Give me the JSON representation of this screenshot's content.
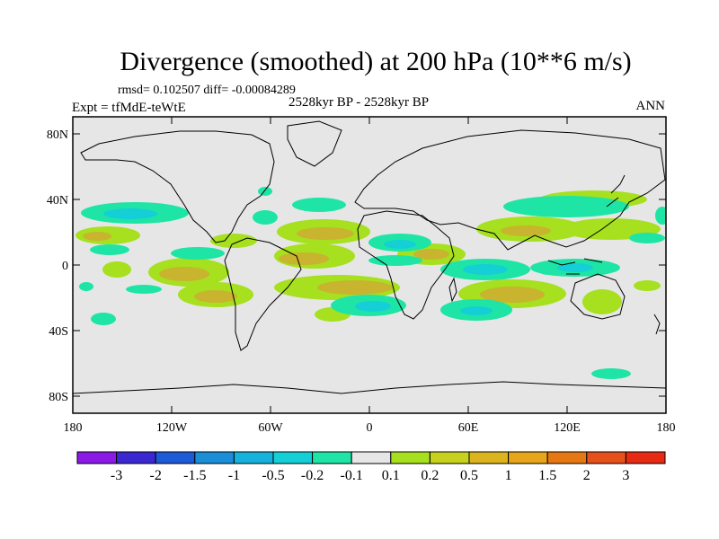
{
  "title": "Divergence (smoothed) at 200 hPa (10**6 m/s)",
  "stats": "rmsd= 0.102507 diff= -0.00084289",
  "experiment": "Expt = tfMdE-teWtE",
  "period": "2528kyr BP - 2528kyr BP",
  "season": "ANN",
  "lat_ticks": [
    "80N",
    "40N",
    "0",
    "40S",
    "80S"
  ],
  "lon_ticks": [
    "180",
    "120W",
    "60W",
    "0",
    "60E",
    "120E",
    "180"
  ],
  "colorbar": {
    "colors": [
      "#8c1ae6",
      "#3c28d2",
      "#1c5ad8",
      "#1a8ed6",
      "#16b2dc",
      "#14cfd6",
      "#1ee5a5",
      "#e6e6e6",
      "#a6e01e",
      "#c8d21e",
      "#dcb41e",
      "#e6a51a",
      "#e67814",
      "#e6501a",
      "#e62a14"
    ],
    "labels": [
      "-3",
      "-2",
      "-1.5",
      "-1",
      "-0.5",
      "-0.2",
      "-0.1",
      "0.1",
      "0.2",
      "0.5",
      "1",
      "1.5",
      "2",
      "3"
    ]
  },
  "colors": {
    "map_background": "#e6e6e6",
    "pos_weak": "#a6e01e",
    "pos_mid": "#c8b42e",
    "neg_weak": "#1ee5a5",
    "neg_mid": "#14cfd6"
  }
}
